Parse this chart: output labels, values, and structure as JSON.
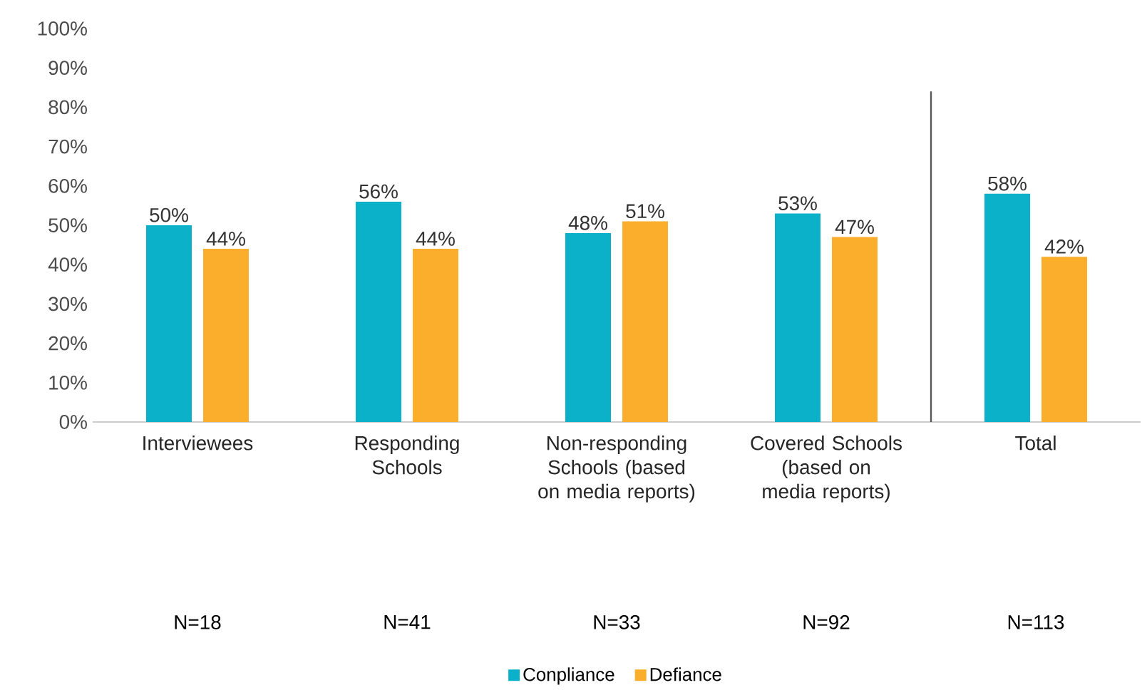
{
  "chart_data": {
    "type": "bar",
    "categories": [
      "Interviewees",
      "Responding Schools",
      "Non-responding Schools (based on media reports)",
      "Covered Schools (based on media reports)",
      "Total"
    ],
    "series": [
      {
        "name": "Conpliance",
        "color": "#0bb0c9",
        "values": [
          50,
          56,
          48,
          53,
          58
        ],
        "value_labels": [
          "50%",
          "56%",
          "48%",
          "53%",
          "58%"
        ]
      },
      {
        "name": "Defiance",
        "color": "#fbae2c",
        "values": [
          44,
          44,
          51,
          47,
          42
        ],
        "value_labels": [
          "44%",
          "44%",
          "51%",
          "47%",
          "42%"
        ]
      }
    ],
    "ylim": [
      0,
      100
    ],
    "yticks": [
      {
        "value": 0,
        "label": "0%"
      },
      {
        "value": 10,
        "label": "10%"
      },
      {
        "value": 20,
        "label": "20%"
      },
      {
        "value": 30,
        "label": "30%"
      },
      {
        "value": 40,
        "label": "40%"
      },
      {
        "value": 50,
        "label": "50%"
      },
      {
        "value": 60,
        "label": "60%"
      },
      {
        "value": 70,
        "label": "70%"
      },
      {
        "value": 80,
        "label": "80%"
      },
      {
        "value": 90,
        "label": "90%"
      },
      {
        "value": 100,
        "label": "100%"
      }
    ],
    "annotations": [
      "N=18",
      "N=41",
      "N=33",
      "N=92",
      "N=113"
    ],
    "legend": "bottom"
  }
}
